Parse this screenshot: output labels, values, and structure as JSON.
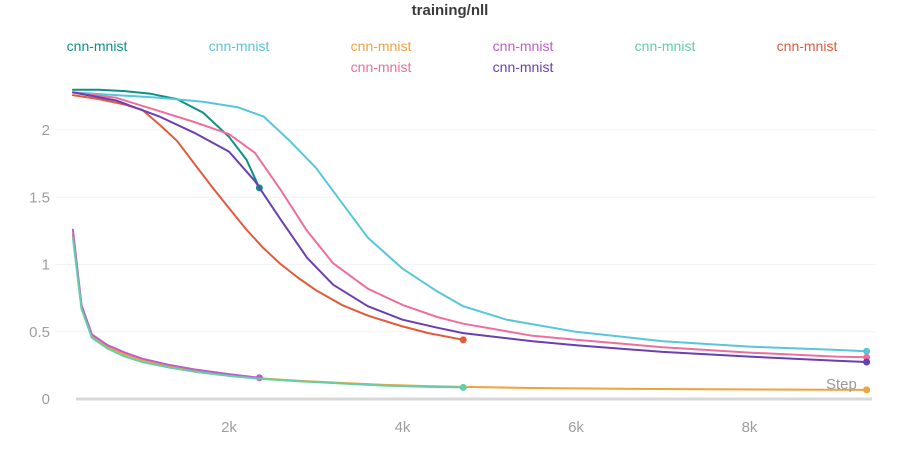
{
  "chart_data": {
    "type": "line",
    "title": "training/nll",
    "xlabel": "Step",
    "ylabel": "",
    "xlim": [
      0,
      9450
    ],
    "ylim": [
      0,
      2.35
    ],
    "x_ticks": [
      {
        "value": 2000,
        "label": "2k"
      },
      {
        "value": 4000,
        "label": "4k"
      },
      {
        "value": 6000,
        "label": "6k"
      },
      {
        "value": 8000,
        "label": "8k"
      }
    ],
    "y_ticks": [
      {
        "value": 0,
        "label": "0"
      },
      {
        "value": 0.5,
        "label": "0.5"
      },
      {
        "value": 1,
        "label": "1"
      },
      {
        "value": 1.5,
        "label": "1.5"
      },
      {
        "value": 2,
        "label": "2"
      }
    ],
    "grid": "faint horizontal gridlines, emphasized zero baseline",
    "legend_position": "top",
    "legend": [
      {
        "label": "cnn-mnist",
        "color": "#0D9185",
        "row": 1,
        "col": 1
      },
      {
        "label": "cnn-mnist",
        "color": "#58C6DA",
        "row": 1,
        "col": 2
      },
      {
        "label": "cnn-mnist",
        "color": "#F0A23C",
        "row": 1,
        "col": 3
      },
      {
        "label": "cnn-mnist",
        "color": "#BD5FC8",
        "row": 1,
        "col": 4
      },
      {
        "label": "cnn-mnist",
        "color": "#62CFA8",
        "row": 1,
        "col": 5
      },
      {
        "label": "cnn-mnist",
        "color": "#E25A3C",
        "row": 1,
        "col": 6
      },
      {
        "label": "cnn-mnist",
        "color": "#EE6E9E",
        "row": 2,
        "col": 3
      },
      {
        "label": "cnn-mnist",
        "color": "#6A3FB0",
        "row": 2,
        "col": 4
      }
    ],
    "series": [
      {
        "name": "cnn-mnist",
        "color": "#0D9185",
        "end_dot": true,
        "x": [
          200,
          500,
          800,
          1100,
          1400,
          1700,
          2000,
          2200,
          2350
        ],
        "y": [
          2.3,
          2.3,
          2.29,
          2.27,
          2.23,
          2.13,
          1.95,
          1.78,
          1.57
        ]
      },
      {
        "name": "cnn-mnist",
        "color": "#58C6DA",
        "end_dot": true,
        "x": [
          200,
          700,
          1200,
          1700,
          2100,
          2400,
          2700,
          3000,
          3300,
          3600,
          4000,
          4400,
          4700,
          5200,
          6000,
          7000,
          8000,
          9000,
          9350
        ],
        "y": [
          2.28,
          2.26,
          2.24,
          2.21,
          2.17,
          2.1,
          1.92,
          1.72,
          1.46,
          1.2,
          0.97,
          0.8,
          0.69,
          0.59,
          0.5,
          0.43,
          0.39,
          0.365,
          0.355
        ]
      },
      {
        "name": "cnn-mnist",
        "color": "#F0A23C",
        "end_dot": true,
        "x": [
          200,
          300,
          420,
          600,
          800,
          1000,
          1300,
          1600,
          2000,
          2350,
          2800,
          3300,
          3800,
          4300,
          4700,
          5500,
          6500,
          7500,
          8500,
          9350
        ],
        "y": [
          1.22,
          0.68,
          0.47,
          0.39,
          0.33,
          0.29,
          0.245,
          0.21,
          0.18,
          0.155,
          0.135,
          0.12,
          0.105,
          0.096,
          0.09,
          0.082,
          0.076,
          0.072,
          0.07,
          0.068
        ]
      },
      {
        "name": "cnn-mnist",
        "color": "#BD5FC8",
        "end_dot": true,
        "x": [
          200,
          300,
          420,
          600,
          800,
          1000,
          1300,
          1600,
          2000,
          2350
        ],
        "y": [
          1.26,
          0.7,
          0.48,
          0.4,
          0.345,
          0.3,
          0.255,
          0.22,
          0.185,
          0.158
        ]
      },
      {
        "name": "cnn-mnist",
        "color": "#62CFA8",
        "end_dot": true,
        "x": [
          200,
          300,
          420,
          600,
          800,
          1000,
          1300,
          1600,
          2000,
          2350,
          2800,
          3300,
          3800,
          4300,
          4700
        ],
        "y": [
          1.2,
          0.67,
          0.455,
          0.375,
          0.315,
          0.275,
          0.235,
          0.203,
          0.172,
          0.15,
          0.132,
          0.115,
          0.1,
          0.09,
          0.086
        ]
      },
      {
        "name": "cnn-mnist",
        "color": "#E25A3C",
        "end_dot": true,
        "x": [
          200,
          500,
          800,
          1000,
          1200,
          1400,
          1600,
          1800,
          2000,
          2200,
          2400,
          2600,
          2800,
          3000,
          3300,
          3600,
          4000,
          4300,
          4700
        ],
        "y": [
          2.26,
          2.23,
          2.19,
          2.15,
          2.04,
          1.92,
          1.75,
          1.58,
          1.42,
          1.26,
          1.12,
          1.0,
          0.9,
          0.81,
          0.7,
          0.62,
          0.54,
          0.49,
          0.44
        ]
      },
      {
        "name": "cnn-mnist",
        "color": "#EE6E9E",
        "end_dot": true,
        "x": [
          200,
          700,
          1200,
          1600,
          2000,
          2300,
          2600,
          2900,
          3200,
          3600,
          4000,
          4400,
          4700,
          5500,
          6000,
          7000,
          8000,
          9000,
          9350
        ],
        "y": [
          2.28,
          2.24,
          2.14,
          2.06,
          1.97,
          1.83,
          1.55,
          1.25,
          1.01,
          0.82,
          0.7,
          0.61,
          0.56,
          0.47,
          0.44,
          0.385,
          0.345,
          0.315,
          0.31
        ]
      },
      {
        "name": "cnn-mnist",
        "color": "#6A3FB0",
        "end_dot": true,
        "x": [
          200,
          700,
          1200,
          1600,
          2000,
          2300,
          2600,
          2900,
          3200,
          3600,
          4000,
          4400,
          4700,
          5500,
          6000,
          7000,
          8000,
          9000,
          9350
        ],
        "y": [
          2.28,
          2.22,
          2.1,
          1.98,
          1.84,
          1.62,
          1.33,
          1.05,
          0.85,
          0.69,
          0.59,
          0.53,
          0.49,
          0.43,
          0.4,
          0.35,
          0.315,
          0.285,
          0.275
        ]
      }
    ]
  }
}
